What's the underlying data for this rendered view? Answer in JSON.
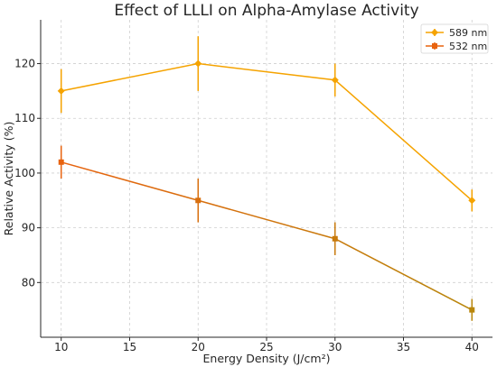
{
  "chart_data": {
    "type": "line",
    "title": "Effect of LLLI on Alpha-Amylase Activity",
    "xlabel": "Energy Density (J/cm²)",
    "ylabel": "Relative Activity (%)",
    "x": [
      10,
      20,
      30,
      40
    ],
    "xlim": [
      8.5,
      41.5
    ],
    "ylim": [
      70,
      128
    ],
    "xticks": [
      10,
      15,
      20,
      25,
      30,
      35,
      40
    ],
    "yticks": [
      80,
      90,
      100,
      110,
      120
    ],
    "grid": true,
    "legend_position": "top-right",
    "series": [
      {
        "name": "589 nm",
        "values": [
          115,
          120,
          117,
          95
        ],
        "errors": [
          4,
          5,
          3,
          2
        ],
        "color": "#f5a300",
        "marker": "diamond"
      },
      {
        "name": "532 nm",
        "values": [
          102,
          95,
          88,
          75
        ],
        "errors": [
          3,
          4,
          3,
          2
        ],
        "color": "#e8630f",
        "color_end": "#b8860b",
        "marker": "square"
      }
    ]
  }
}
